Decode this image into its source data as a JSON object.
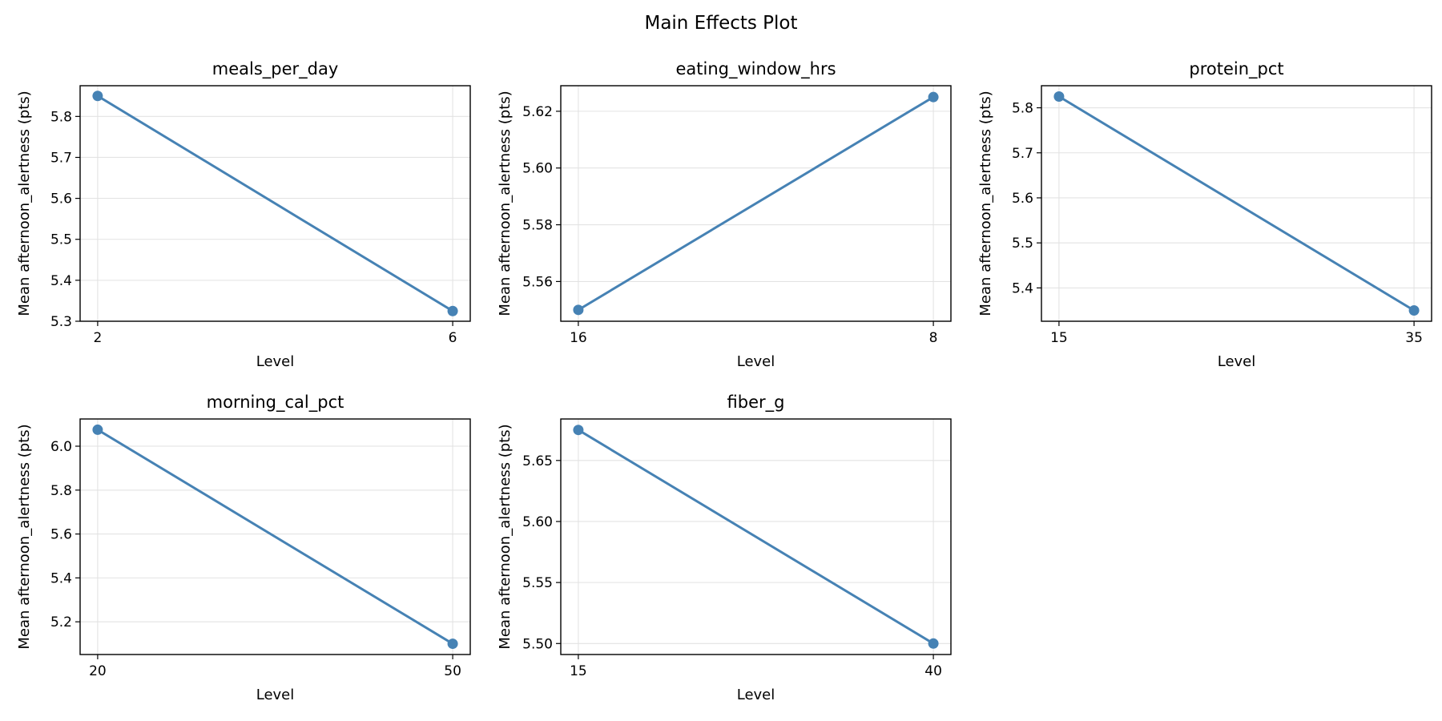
{
  "title": "Main Effects Plot",
  "colors": {
    "series": "#4682b4",
    "grid": "#e3e3e3",
    "axis": "#000000",
    "background": "#ffffff"
  },
  "chart_data": [
    {
      "type": "line",
      "title": "meals_per_day",
      "xlabel": "Level",
      "ylabel": "Mean afternoon_alertness (pts)",
      "categories": [
        "2",
        "6"
      ],
      "values": [
        5.85,
        5.325
      ],
      "ylim": [
        5.3,
        5.875
      ],
      "yticks": [
        5.3,
        5.4,
        5.5,
        5.6,
        5.7,
        5.8
      ],
      "ytick_labels": [
        "5.3",
        "5.4",
        "5.5",
        "5.6",
        "5.7",
        "5.8"
      ],
      "grid": true
    },
    {
      "type": "line",
      "title": "eating_window_hrs",
      "xlabel": "Level",
      "ylabel": "Mean afternoon_alertness (pts)",
      "categories": [
        "16",
        "8"
      ],
      "values": [
        5.55,
        5.625
      ],
      "ylim": [
        5.546,
        5.629
      ],
      "yticks": [
        5.56,
        5.58,
        5.6,
        5.62
      ],
      "ytick_labels": [
        "5.56",
        "5.58",
        "5.60",
        "5.62"
      ],
      "grid": true
    },
    {
      "type": "line",
      "title": "protein_pct",
      "xlabel": "Level",
      "ylabel": "Mean afternoon_alertness (pts)",
      "categories": [
        "15",
        "35"
      ],
      "values": [
        5.825,
        5.35
      ],
      "ylim": [
        5.326,
        5.849
      ],
      "yticks": [
        5.4,
        5.5,
        5.6,
        5.7,
        5.8
      ],
      "ytick_labels": [
        "5.4",
        "5.5",
        "5.6",
        "5.7",
        "5.8"
      ],
      "grid": true
    },
    {
      "type": "line",
      "title": "morning_cal_pct",
      "xlabel": "Level",
      "ylabel": "Mean afternoon_alertness (pts)",
      "categories": [
        "20",
        "50"
      ],
      "values": [
        6.075,
        5.1
      ],
      "ylim": [
        5.051,
        6.124
      ],
      "yticks": [
        5.2,
        5.4,
        5.6,
        5.8,
        6.0
      ],
      "ytick_labels": [
        "5.2",
        "5.4",
        "5.6",
        "5.8",
        "6.0"
      ],
      "grid": true
    },
    {
      "type": "line",
      "title": "fiber_g",
      "xlabel": "Level",
      "ylabel": "Mean afternoon_alertness (pts)",
      "categories": [
        "15",
        "40"
      ],
      "values": [
        5.675,
        5.5
      ],
      "ylim": [
        5.491,
        5.684
      ],
      "yticks": [
        5.5,
        5.55,
        5.6,
        5.65
      ],
      "ytick_labels": [
        "5.50",
        "5.55",
        "5.60",
        "5.65"
      ],
      "grid": true
    }
  ]
}
